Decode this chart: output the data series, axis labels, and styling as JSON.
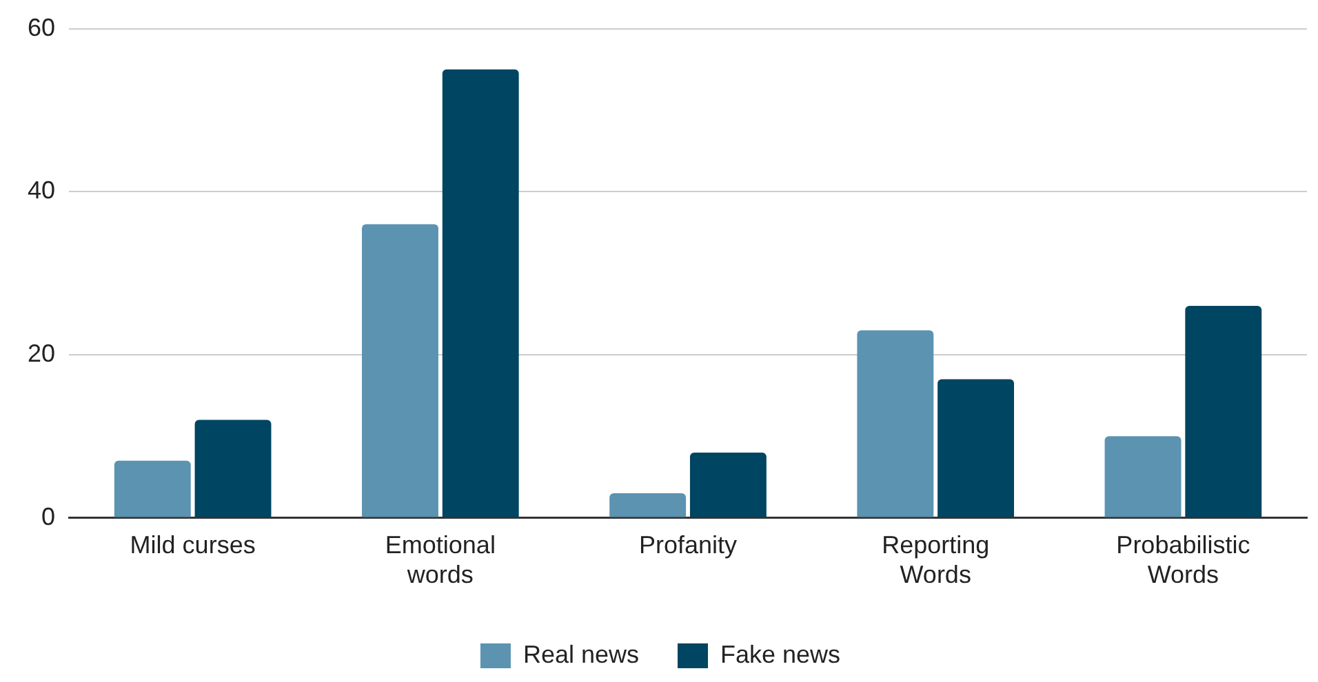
{
  "chart_data": {
    "type": "bar",
    "categories": [
      "Mild curses",
      "Emotional words",
      "Profanity",
      "Reporting Words",
      "Probabilistic Words"
    ],
    "series": [
      {
        "name": "Real news",
        "color": "#5b93b1",
        "values": [
          7,
          36,
          3,
          23,
          10
        ]
      },
      {
        "name": "Fake news",
        "color": "#004561",
        "values": [
          12,
          55,
          8,
          17,
          26
        ]
      }
    ],
    "ylim": [
      0,
      60
    ],
    "yticks": [
      0,
      20,
      40,
      60
    ],
    "grid": "y",
    "legend": "bottom"
  }
}
